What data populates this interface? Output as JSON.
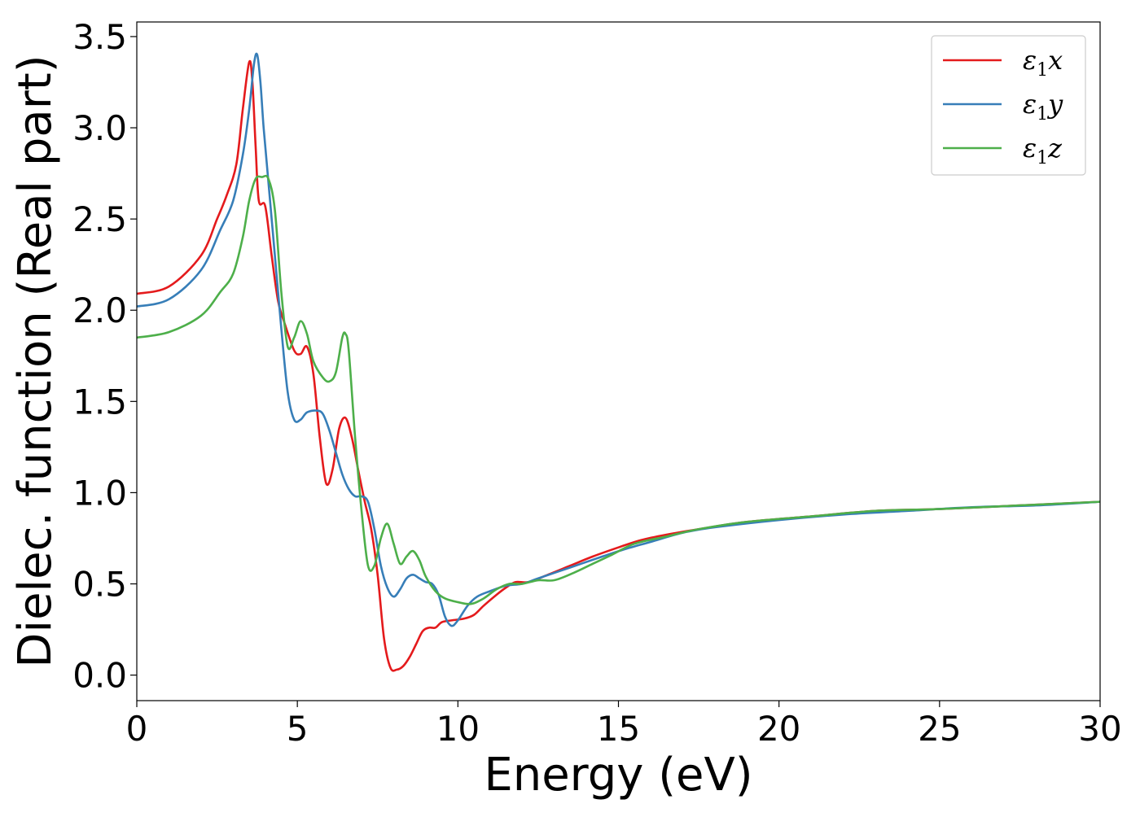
{
  "chart_data": {
    "type": "line",
    "title": "",
    "xlabel": "Energy (eV)",
    "ylabel": "Dielec. function (Real part)",
    "xlim": [
      0,
      30
    ],
    "ylim": [
      -0.14,
      3.58
    ],
    "xticks": [
      0,
      5,
      10,
      15,
      20,
      25,
      30
    ],
    "xtick_labels": [
      "0",
      "5",
      "10",
      "15",
      "20",
      "25",
      "30"
    ],
    "yticks": [
      0.0,
      0.5,
      1.0,
      1.5,
      2.0,
      2.5,
      3.0,
      3.5
    ],
    "ytick_labels": [
      "0.0",
      "0.5",
      "1.0",
      "1.5",
      "2.0",
      "2.5",
      "3.0",
      "3.5"
    ],
    "grid": false,
    "legend_position": "top-right",
    "series": [
      {
        "name": "ε₁x",
        "legend_base": "ε",
        "legend_sub": "1",
        "legend_var": "x",
        "color": "#e41a1c",
        "points": [
          [
            0,
            2.09
          ],
          [
            1,
            2.13
          ],
          [
            2,
            2.3
          ],
          [
            2.5,
            2.5
          ],
          [
            2.8,
            2.63
          ],
          [
            3.1,
            2.8
          ],
          [
            3.3,
            3.1
          ],
          [
            3.5,
            3.36
          ],
          [
            3.6,
            3.25
          ],
          [
            3.7,
            2.9
          ],
          [
            3.8,
            2.6
          ],
          [
            4.0,
            2.57
          ],
          [
            4.2,
            2.3
          ],
          [
            4.4,
            2.05
          ],
          [
            4.6,
            1.93
          ],
          [
            4.9,
            1.78
          ],
          [
            5.1,
            1.76
          ],
          [
            5.3,
            1.8
          ],
          [
            5.5,
            1.65
          ],
          [
            5.7,
            1.3
          ],
          [
            5.9,
            1.05
          ],
          [
            6.1,
            1.13
          ],
          [
            6.3,
            1.35
          ],
          [
            6.5,
            1.41
          ],
          [
            6.7,
            1.3
          ],
          [
            6.9,
            1.12
          ],
          [
            7.1,
            0.95
          ],
          [
            7.3,
            0.8
          ],
          [
            7.5,
            0.55
          ],
          [
            7.7,
            0.2
          ],
          [
            7.9,
            0.04
          ],
          [
            8.1,
            0.03
          ],
          [
            8.3,
            0.05
          ],
          [
            8.5,
            0.1
          ],
          [
            8.7,
            0.17
          ],
          [
            8.9,
            0.24
          ],
          [
            9.1,
            0.26
          ],
          [
            9.3,
            0.26
          ],
          [
            9.5,
            0.29
          ],
          [
            9.8,
            0.3
          ],
          [
            10.2,
            0.31
          ],
          [
            10.5,
            0.33
          ],
          [
            10.8,
            0.38
          ],
          [
            11.2,
            0.44
          ],
          [
            11.5,
            0.48
          ],
          [
            11.8,
            0.51
          ],
          [
            12.2,
            0.51
          ],
          [
            12.8,
            0.55
          ],
          [
            13.5,
            0.6
          ],
          [
            14.2,
            0.65
          ],
          [
            15,
            0.7
          ],
          [
            15.7,
            0.74
          ],
          [
            16.5,
            0.77
          ],
          [
            17.5,
            0.8
          ],
          [
            19,
            0.84
          ],
          [
            21,
            0.87
          ],
          [
            23,
            0.9
          ],
          [
            25,
            0.91
          ],
          [
            27.5,
            0.93
          ],
          [
            30,
            0.95
          ]
        ]
      },
      {
        "name": "ε₁y",
        "legend_base": "ε",
        "legend_sub": "1",
        "legend_var": "y",
        "color": "#377eb8",
        "points": [
          [
            0,
            2.02
          ],
          [
            1,
            2.06
          ],
          [
            2,
            2.22
          ],
          [
            2.6,
            2.44
          ],
          [
            3.0,
            2.6
          ],
          [
            3.3,
            2.85
          ],
          [
            3.5,
            3.1
          ],
          [
            3.65,
            3.35
          ],
          [
            3.75,
            3.4
          ],
          [
            3.85,
            3.25
          ],
          [
            3.95,
            3.0
          ],
          [
            4.1,
            2.7
          ],
          [
            4.3,
            2.3
          ],
          [
            4.5,
            1.9
          ],
          [
            4.7,
            1.55
          ],
          [
            4.9,
            1.4
          ],
          [
            5.1,
            1.4
          ],
          [
            5.3,
            1.44
          ],
          [
            5.6,
            1.45
          ],
          [
            5.8,
            1.43
          ],
          [
            6.0,
            1.34
          ],
          [
            6.2,
            1.22
          ],
          [
            6.4,
            1.1
          ],
          [
            6.6,
            1.02
          ],
          [
            6.8,
            0.98
          ],
          [
            7.0,
            0.98
          ],
          [
            7.2,
            0.95
          ],
          [
            7.4,
            0.8
          ],
          [
            7.6,
            0.6
          ],
          [
            7.8,
            0.48
          ],
          [
            8.0,
            0.43
          ],
          [
            8.2,
            0.47
          ],
          [
            8.4,
            0.53
          ],
          [
            8.6,
            0.55
          ],
          [
            8.8,
            0.53
          ],
          [
            9.0,
            0.51
          ],
          [
            9.2,
            0.5
          ],
          [
            9.4,
            0.44
          ],
          [
            9.6,
            0.32
          ],
          [
            9.8,
            0.27
          ],
          [
            10.0,
            0.3
          ],
          [
            10.3,
            0.38
          ],
          [
            10.6,
            0.43
          ],
          [
            11.0,
            0.46
          ],
          [
            11.5,
            0.49
          ],
          [
            12.0,
            0.5
          ],
          [
            12.5,
            0.53
          ],
          [
            13.5,
            0.59
          ],
          [
            14.5,
            0.65
          ],
          [
            15.2,
            0.69
          ],
          [
            16,
            0.73
          ],
          [
            17,
            0.78
          ],
          [
            18,
            0.81
          ],
          [
            20,
            0.85
          ],
          [
            22,
            0.88
          ],
          [
            24,
            0.9
          ],
          [
            26,
            0.92
          ],
          [
            28,
            0.93
          ],
          [
            30,
            0.95
          ]
        ]
      },
      {
        "name": "ε₁z",
        "legend_base": "ε",
        "legend_sub": "1",
        "legend_var": "z",
        "color": "#4daf4a",
        "points": [
          [
            0,
            1.85
          ],
          [
            1,
            1.88
          ],
          [
            2,
            1.97
          ],
          [
            2.6,
            2.1
          ],
          [
            3.0,
            2.2
          ],
          [
            3.3,
            2.4
          ],
          [
            3.5,
            2.6
          ],
          [
            3.7,
            2.72
          ],
          [
            3.9,
            2.73
          ],
          [
            4.1,
            2.72
          ],
          [
            4.3,
            2.55
          ],
          [
            4.5,
            2.1
          ],
          [
            4.7,
            1.8
          ],
          [
            4.9,
            1.85
          ],
          [
            5.1,
            1.94
          ],
          [
            5.3,
            1.87
          ],
          [
            5.5,
            1.72
          ],
          [
            5.8,
            1.63
          ],
          [
            6.0,
            1.61
          ],
          [
            6.2,
            1.66
          ],
          [
            6.4,
            1.85
          ],
          [
            6.5,
            1.87
          ],
          [
            6.6,
            1.78
          ],
          [
            6.8,
            1.3
          ],
          [
            7.0,
            0.9
          ],
          [
            7.2,
            0.6
          ],
          [
            7.4,
            0.6
          ],
          [
            7.6,
            0.75
          ],
          [
            7.8,
            0.83
          ],
          [
            8.0,
            0.72
          ],
          [
            8.2,
            0.61
          ],
          [
            8.4,
            0.65
          ],
          [
            8.6,
            0.68
          ],
          [
            8.8,
            0.63
          ],
          [
            9.0,
            0.54
          ],
          [
            9.3,
            0.46
          ],
          [
            9.6,
            0.42
          ],
          [
            10.0,
            0.4
          ],
          [
            10.4,
            0.39
          ],
          [
            10.8,
            0.42
          ],
          [
            11.2,
            0.47
          ],
          [
            11.6,
            0.5
          ],
          [
            12.0,
            0.5
          ],
          [
            12.5,
            0.52
          ],
          [
            13.0,
            0.52
          ],
          [
            13.6,
            0.56
          ],
          [
            14.2,
            0.61
          ],
          [
            14.8,
            0.66
          ],
          [
            15.5,
            0.72
          ],
          [
            16.5,
            0.76
          ],
          [
            17.5,
            0.8
          ],
          [
            19,
            0.84
          ],
          [
            21,
            0.87
          ],
          [
            23,
            0.9
          ],
          [
            25,
            0.91
          ],
          [
            27.5,
            0.93
          ],
          [
            30,
            0.95
          ]
        ]
      }
    ]
  }
}
